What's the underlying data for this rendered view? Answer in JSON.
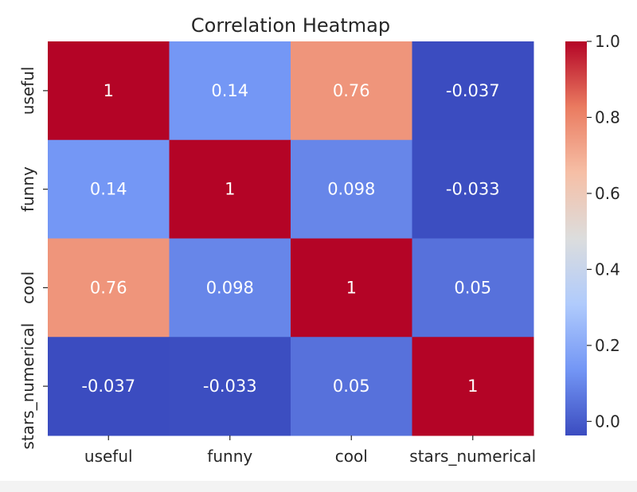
{
  "chart_data": {
    "type": "heatmap",
    "title": "Correlation Heatmap",
    "xlabel": "",
    "ylabel": "",
    "x_categories": [
      "useful",
      "funny",
      "cool",
      "stars_numerical"
    ],
    "y_categories": [
      "useful",
      "funny",
      "cool",
      "stars_numerical"
    ],
    "values": [
      [
        1,
        0.14,
        0.76,
        -0.037
      ],
      [
        0.14,
        1,
        0.098,
        -0.033
      ],
      [
        0.76,
        0.098,
        1,
        0.05
      ],
      [
        -0.037,
        -0.033,
        0.05,
        1
      ]
    ],
    "cell_labels": [
      [
        "1",
        "0.14",
        "0.76",
        "-0.037"
      ],
      [
        "0.14",
        "1",
        "0.098",
        "-0.033"
      ],
      [
        "0.76",
        "0.098",
        "1",
        "0.05"
      ],
      [
        "-0.037",
        "-0.033",
        "0.05",
        "1"
      ]
    ],
    "colormap": "coolwarm",
    "colormap_stops": [
      "#3b4cc0",
      "#7396f5",
      "#b0cbfc",
      "#dcdddd",
      "#f6bfa6",
      "#ea7b60",
      "#b40426"
    ],
    "colorbar": {
      "range": [
        -0.037,
        1.0
      ],
      "ticks": [
        0.0,
        0.2,
        0.4,
        0.6,
        0.8,
        1.0
      ],
      "tick_labels": [
        "0.0",
        "0.2",
        "0.4",
        "0.6",
        "0.8",
        "1.0"
      ]
    },
    "annotation_color": "#ffffff",
    "grid": false,
    "legend": "colorbar-right"
  }
}
